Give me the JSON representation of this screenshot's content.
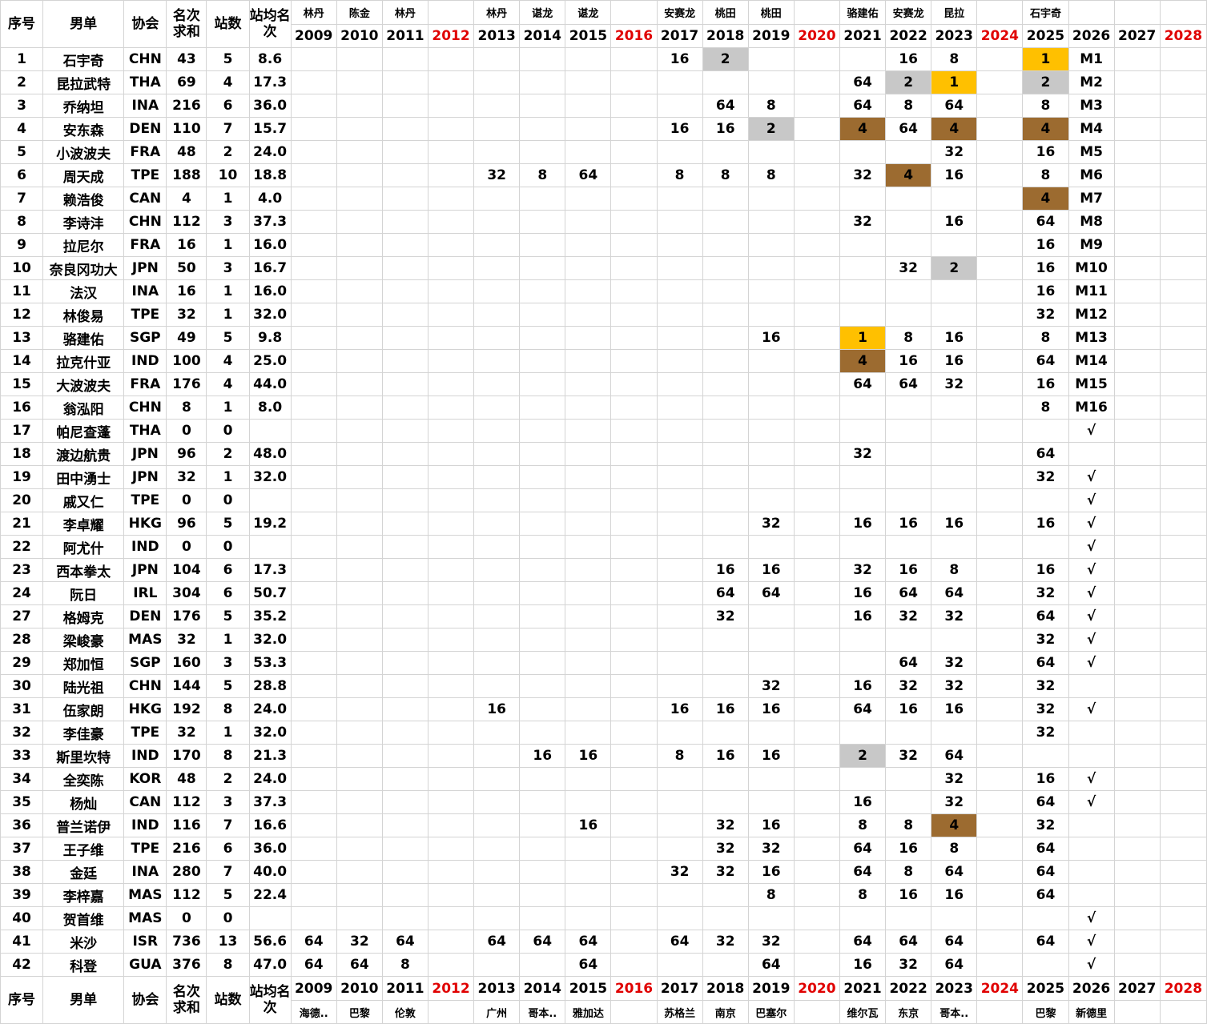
{
  "headers": {
    "index": "序号",
    "player": "男单",
    "assoc": "协会",
    "rank_sum": "名次求和",
    "events": "站数",
    "avg_rank": "站均名次"
  },
  "years": [
    "2009",
    "2010",
    "2011",
    "2012",
    "2013",
    "2014",
    "2015",
    "2016",
    "2017",
    "2018",
    "2019",
    "2020",
    "2021",
    "2022",
    "2023",
    "2024",
    "2025",
    "2026",
    "2027",
    "2028"
  ],
  "red_years": [
    "2012",
    "2016",
    "2020",
    "2024",
    "2028"
  ],
  "champions": [
    "林丹",
    "陈金",
    "林丹",
    "",
    "林丹",
    "谌龙",
    "谌龙",
    "",
    "安赛龙",
    "桃田",
    "桃田",
    "",
    "骆建佑",
    "安赛龙",
    "昆拉",
    "",
    "石宇奇",
    "",
    "",
    ""
  ],
  "venues": [
    "海德..",
    "巴黎",
    "伦敦",
    "",
    "广州",
    "哥本..",
    "雅加达",
    "",
    "苏格兰",
    "南京",
    "巴塞尔",
    "",
    "维尔瓦",
    "东京",
    "哥本..",
    "",
    "巴黎",
    "新德里",
    "",
    ""
  ],
  "rows": [
    {
      "idx": "1",
      "name": "石宇奇",
      "assoc": "CHN",
      "sum": "43",
      "n": "5",
      "avg": "8.6",
      "r": [
        "",
        "",
        "",
        "",
        "",
        "",
        "",
        "",
        "16",
        "2",
        "",
        "",
        "",
        "16",
        "8",
        "",
        "1",
        "M1",
        "",
        ""
      ],
      "m": {
        "9": "silver",
        "16": "gold"
      }
    },
    {
      "idx": "2",
      "name": "昆拉武特",
      "assoc": "THA",
      "sum": "69",
      "n": "4",
      "avg": "17.3",
      "r": [
        "",
        "",
        "",
        "",
        "",
        "",
        "",
        "",
        "",
        "",
        "",
        "",
        "64",
        "2",
        "1",
        "",
        "2",
        "M2",
        "",
        ""
      ],
      "m": {
        "13": "silver",
        "14": "gold",
        "16": "silver"
      }
    },
    {
      "idx": "3",
      "name": "乔纳坦",
      "assoc": "INA",
      "sum": "216",
      "n": "6",
      "avg": "36.0",
      "r": [
        "",
        "",
        "",
        "",
        "",
        "",
        "",
        "",
        "",
        "64",
        "8",
        "",
        "64",
        "8",
        "64",
        "",
        "8",
        "M3",
        "",
        ""
      ],
      "m": {}
    },
    {
      "idx": "4",
      "name": "安东森",
      "assoc": "DEN",
      "sum": "110",
      "n": "7",
      "avg": "15.7",
      "r": [
        "",
        "",
        "",
        "",
        "",
        "",
        "",
        "",
        "16",
        "16",
        "2",
        "",
        "4",
        "64",
        "4",
        "",
        "4",
        "M4",
        "",
        ""
      ],
      "m": {
        "10": "silver",
        "12": "bronze",
        "14": "bronze",
        "16": "bronze"
      }
    },
    {
      "idx": "5",
      "name": "小波波夫",
      "assoc": "FRA",
      "sum": "48",
      "n": "2",
      "avg": "24.0",
      "r": [
        "",
        "",
        "",
        "",
        "",
        "",
        "",
        "",
        "",
        "",
        "",
        "",
        "",
        "",
        "32",
        "",
        "16",
        "M5",
        "",
        ""
      ],
      "m": {}
    },
    {
      "idx": "6",
      "name": "周天成",
      "assoc": "TPE",
      "sum": "188",
      "n": "10",
      "avg": "18.8",
      "r": [
        "",
        "",
        "",
        "",
        "32",
        "8",
        "64",
        "",
        "8",
        "8",
        "8",
        "",
        "32",
        "4",
        "16",
        "",
        "8",
        "M6",
        "",
        ""
      ],
      "m": {
        "13": "bronze"
      }
    },
    {
      "idx": "7",
      "name": "赖浩俊",
      "assoc": "CAN",
      "sum": "4",
      "n": "1",
      "avg": "4.0",
      "r": [
        "",
        "",
        "",
        "",
        "",
        "",
        "",
        "",
        "",
        "",
        "",
        "",
        "",
        "",
        "",
        "",
        "4",
        "M7",
        "",
        ""
      ],
      "m": {
        "16": "bronze"
      }
    },
    {
      "idx": "8",
      "name": "李诗沣",
      "assoc": "CHN",
      "sum": "112",
      "n": "3",
      "avg": "37.3",
      "r": [
        "",
        "",
        "",
        "",
        "",
        "",
        "",
        "",
        "",
        "",
        "",
        "",
        "32",
        "",
        "16",
        "",
        "64",
        "M8",
        "",
        ""
      ],
      "m": {}
    },
    {
      "idx": "9",
      "name": "拉尼尔",
      "assoc": "FRA",
      "sum": "16",
      "n": "1",
      "avg": "16.0",
      "r": [
        "",
        "",
        "",
        "",
        "",
        "",
        "",
        "",
        "",
        "",
        "",
        "",
        "",
        "",
        "",
        "",
        "16",
        "M9",
        "",
        ""
      ],
      "m": {}
    },
    {
      "idx": "10",
      "name": "奈良冈功大",
      "assoc": "JPN",
      "sum": "50",
      "n": "3",
      "avg": "16.7",
      "r": [
        "",
        "",
        "",
        "",
        "",
        "",
        "",
        "",
        "",
        "",
        "",
        "",
        "",
        "32",
        "2",
        "",
        "16",
        "M10",
        "",
        ""
      ],
      "m": {
        "14": "silver"
      }
    },
    {
      "idx": "11",
      "name": "法汉",
      "assoc": "INA",
      "sum": "16",
      "n": "1",
      "avg": "16.0",
      "r": [
        "",
        "",
        "",
        "",
        "",
        "",
        "",
        "",
        "",
        "",
        "",
        "",
        "",
        "",
        "",
        "",
        "16",
        "M11",
        "",
        ""
      ],
      "m": {}
    },
    {
      "idx": "12",
      "name": "林俊易",
      "assoc": "TPE",
      "sum": "32",
      "n": "1",
      "avg": "32.0",
      "r": [
        "",
        "",
        "",
        "",
        "",
        "",
        "",
        "",
        "",
        "",
        "",
        "",
        "",
        "",
        "",
        "",
        "32",
        "M12",
        "",
        ""
      ],
      "m": {}
    },
    {
      "idx": "13",
      "name": "骆建佑",
      "assoc": "SGP",
      "sum": "49",
      "n": "5",
      "avg": "9.8",
      "r": [
        "",
        "",
        "",
        "",
        "",
        "",
        "",
        "",
        "",
        "",
        "16",
        "",
        "1",
        "8",
        "16",
        "",
        "8",
        "M13",
        "",
        ""
      ],
      "m": {
        "12": "gold"
      }
    },
    {
      "idx": "14",
      "name": "拉克什亚",
      "assoc": "IND",
      "sum": "100",
      "n": "4",
      "avg": "25.0",
      "r": [
        "",
        "",
        "",
        "",
        "",
        "",
        "",
        "",
        "",
        "",
        "",
        "",
        "4",
        "16",
        "16",
        "",
        "64",
        "M14",
        "",
        ""
      ],
      "m": {
        "12": "bronze"
      }
    },
    {
      "idx": "15",
      "name": "大波波夫",
      "assoc": "FRA",
      "sum": "176",
      "n": "4",
      "avg": "44.0",
      "r": [
        "",
        "",
        "",
        "",
        "",
        "",
        "",
        "",
        "",
        "",
        "",
        "",
        "64",
        "64",
        "32",
        "",
        "16",
        "M15",
        "",
        ""
      ],
      "m": {}
    },
    {
      "idx": "16",
      "name": "翁泓阳",
      "assoc": "CHN",
      "sum": "8",
      "n": "1",
      "avg": "8.0",
      "r": [
        "",
        "",
        "",
        "",
        "",
        "",
        "",
        "",
        "",
        "",
        "",
        "",
        "",
        "",
        "",
        "",
        "8",
        "M16",
        "",
        ""
      ],
      "m": {}
    },
    {
      "idx": "17",
      "name": "帕尼查蓬",
      "assoc": "THA",
      "sum": "0",
      "n": "0",
      "avg": "",
      "r": [
        "",
        "",
        "",
        "",
        "",
        "",
        "",
        "",
        "",
        "",
        "",
        "",
        "",
        "",
        "",
        "",
        "",
        "√",
        "",
        ""
      ],
      "m": {}
    },
    {
      "idx": "18",
      "name": "渡边航贵",
      "assoc": "JPN",
      "sum": "96",
      "n": "2",
      "avg": "48.0",
      "r": [
        "",
        "",
        "",
        "",
        "",
        "",
        "",
        "",
        "",
        "",
        "",
        "",
        "32",
        "",
        "",
        "",
        "64",
        "",
        "",
        ""
      ],
      "m": {}
    },
    {
      "idx": "19",
      "name": "田中湧士",
      "assoc": "JPN",
      "sum": "32",
      "n": "1",
      "avg": "32.0",
      "r": [
        "",
        "",
        "",
        "",
        "",
        "",
        "",
        "",
        "",
        "",
        "",
        "",
        "",
        "",
        "",
        "",
        "32",
        "√",
        "",
        ""
      ],
      "m": {}
    },
    {
      "idx": "20",
      "name": "戚又仁",
      "assoc": "TPE",
      "sum": "0",
      "n": "0",
      "avg": "",
      "r": [
        "",
        "",
        "",
        "",
        "",
        "",
        "",
        "",
        "",
        "",
        "",
        "",
        "",
        "",
        "",
        "",
        "",
        "√",
        "",
        ""
      ],
      "m": {}
    },
    {
      "idx": "21",
      "name": "李卓耀",
      "assoc": "HKG",
      "sum": "96",
      "n": "5",
      "avg": "19.2",
      "r": [
        "",
        "",
        "",
        "",
        "",
        "",
        "",
        "",
        "",
        "",
        "32",
        "",
        "16",
        "16",
        "16",
        "",
        "16",
        "√",
        "",
        ""
      ],
      "m": {}
    },
    {
      "idx": "22",
      "name": "阿尤什",
      "assoc": "IND",
      "sum": "0",
      "n": "0",
      "avg": "",
      "r": [
        "",
        "",
        "",
        "",
        "",
        "",
        "",
        "",
        "",
        "",
        "",
        "",
        "",
        "",
        "",
        "",
        "",
        "√",
        "",
        ""
      ],
      "m": {}
    },
    {
      "idx": "23",
      "name": "西本拳太",
      "assoc": "JPN",
      "sum": "104",
      "n": "6",
      "avg": "17.3",
      "r": [
        "",
        "",
        "",
        "",
        "",
        "",
        "",
        "",
        "",
        "16",
        "16",
        "",
        "32",
        "16",
        "8",
        "",
        "16",
        "√",
        "",
        ""
      ],
      "m": {}
    },
    {
      "idx": "24",
      "name": "阮日",
      "assoc": "IRL",
      "sum": "304",
      "n": "6",
      "avg": "50.7",
      "r": [
        "",
        "",
        "",
        "",
        "",
        "",
        "",
        "",
        "",
        "64",
        "64",
        "",
        "16",
        "64",
        "64",
        "",
        "32",
        "√",
        "",
        ""
      ],
      "m": {}
    },
    {
      "idx": "27",
      "name": "格姆克",
      "assoc": "DEN",
      "sum": "176",
      "n": "5",
      "avg": "35.2",
      "r": [
        "",
        "",
        "",
        "",
        "",
        "",
        "",
        "",
        "",
        "32",
        "",
        "",
        "16",
        "32",
        "32",
        "",
        "64",
        "√",
        "",
        ""
      ],
      "m": {}
    },
    {
      "idx": "28",
      "name": "梁峻豪",
      "assoc": "MAS",
      "sum": "32",
      "n": "1",
      "avg": "32.0",
      "r": [
        "",
        "",
        "",
        "",
        "",
        "",
        "",
        "",
        "",
        "",
        "",
        "",
        "",
        "",
        "",
        "",
        "32",
        "√",
        "",
        ""
      ],
      "m": {}
    },
    {
      "idx": "29",
      "name": "郑加恒",
      "assoc": "SGP",
      "sum": "160",
      "n": "3",
      "avg": "53.3",
      "r": [
        "",
        "",
        "",
        "",
        "",
        "",
        "",
        "",
        "",
        "",
        "",
        "",
        "",
        "64",
        "32",
        "",
        "64",
        "√",
        "",
        ""
      ],
      "m": {}
    },
    {
      "idx": "30",
      "name": "陆光祖",
      "assoc": "CHN",
      "sum": "144",
      "n": "5",
      "avg": "28.8",
      "r": [
        "",
        "",
        "",
        "",
        "",
        "",
        "",
        "",
        "",
        "",
        "32",
        "",
        "16",
        "32",
        "32",
        "",
        "32",
        "",
        "",
        ""
      ],
      "m": {}
    },
    {
      "idx": "31",
      "name": "伍家朗",
      "assoc": "HKG",
      "sum": "192",
      "n": "8",
      "avg": "24.0",
      "r": [
        "",
        "",
        "",
        "",
        "16",
        "",
        "",
        "",
        "16",
        "16",
        "16",
        "",
        "64",
        "16",
        "16",
        "",
        "32",
        "√",
        "",
        ""
      ],
      "m": {}
    },
    {
      "idx": "32",
      "name": "李佳豪",
      "assoc": "TPE",
      "sum": "32",
      "n": "1",
      "avg": "32.0",
      "r": [
        "",
        "",
        "",
        "",
        "",
        "",
        "",
        "",
        "",
        "",
        "",
        "",
        "",
        "",
        "",
        "",
        "32",
        "",
        "",
        ""
      ],
      "m": {}
    },
    {
      "idx": "33",
      "name": "斯里坎特",
      "assoc": "IND",
      "sum": "170",
      "n": "8",
      "avg": "21.3",
      "r": [
        "",
        "",
        "",
        "",
        "",
        "16",
        "16",
        "",
        "8",
        "16",
        "16",
        "",
        "2",
        "32",
        "64",
        "",
        "",
        "",
        "",
        ""
      ],
      "m": {
        "12": "silver"
      }
    },
    {
      "idx": "34",
      "name": "全奕陈",
      "assoc": "KOR",
      "sum": "48",
      "n": "2",
      "avg": "24.0",
      "r": [
        "",
        "",
        "",
        "",
        "",
        "",
        "",
        "",
        "",
        "",
        "",
        "",
        "",
        "",
        "32",
        "",
        "16",
        "√",
        "",
        ""
      ],
      "m": {}
    },
    {
      "idx": "35",
      "name": "杨灿",
      "assoc": "CAN",
      "sum": "112",
      "n": "3",
      "avg": "37.3",
      "r": [
        "",
        "",
        "",
        "",
        "",
        "",
        "",
        "",
        "",
        "",
        "",
        "",
        "16",
        "",
        "32",
        "",
        "64",
        "√",
        "",
        ""
      ],
      "m": {}
    },
    {
      "idx": "36",
      "name": "普兰诺伊",
      "assoc": "IND",
      "sum": "116",
      "n": "7",
      "avg": "16.6",
      "r": [
        "",
        "",
        "",
        "",
        "",
        "",
        "16",
        "",
        "",
        "32",
        "16",
        "",
        "8",
        "8",
        "4",
        "",
        "32",
        "",
        "",
        ""
      ],
      "m": {
        "14": "bronze"
      }
    },
    {
      "idx": "37",
      "name": "王子维",
      "assoc": "TPE",
      "sum": "216",
      "n": "6",
      "avg": "36.0",
      "r": [
        "",
        "",
        "",
        "",
        "",
        "",
        "",
        "",
        "",
        "32",
        "32",
        "",
        "64",
        "16",
        "8",
        "",
        "64",
        "",
        "",
        ""
      ],
      "m": {}
    },
    {
      "idx": "38",
      "name": "金廷",
      "assoc": "INA",
      "sum": "280",
      "n": "7",
      "avg": "40.0",
      "r": [
        "",
        "",
        "",
        "",
        "",
        "",
        "",
        "",
        "32",
        "32",
        "16",
        "",
        "64",
        "8",
        "64",
        "",
        "64",
        "",
        "",
        ""
      ],
      "m": {}
    },
    {
      "idx": "39",
      "name": "李梓嘉",
      "assoc": "MAS",
      "sum": "112",
      "n": "5",
      "avg": "22.4",
      "r": [
        "",
        "",
        "",
        "",
        "",
        "",
        "",
        "",
        "",
        "",
        "8",
        "",
        "8",
        "16",
        "16",
        "",
        "64",
        "",
        "",
        ""
      ],
      "m": {}
    },
    {
      "idx": "40",
      "name": "贺首维",
      "assoc": "MAS",
      "sum": "0",
      "n": "0",
      "avg": "",
      "r": [
        "",
        "",
        "",
        "",
        "",
        "",
        "",
        "",
        "",
        "",
        "",
        "",
        "",
        "",
        "",
        "",
        "",
        "√",
        "",
        ""
      ],
      "m": {}
    },
    {
      "idx": "41",
      "name": "米沙",
      "assoc": "ISR",
      "sum": "736",
      "n": "13",
      "avg": "56.6",
      "r": [
        "64",
        "32",
        "64",
        "",
        "64",
        "64",
        "64",
        "",
        "64",
        "32",
        "32",
        "",
        "64",
        "64",
        "64",
        "",
        "64",
        "√",
        "",
        ""
      ],
      "m": {}
    },
    {
      "idx": "42",
      "name": "科登",
      "assoc": "GUA",
      "sum": "376",
      "n": "8",
      "avg": "47.0",
      "r": [
        "64",
        "64",
        "8",
        "",
        "",
        "",
        "64",
        "",
        "",
        "",
        "64",
        "",
        "16",
        "32",
        "64",
        "",
        "",
        "√",
        "",
        ""
      ],
      "m": {}
    }
  ]
}
